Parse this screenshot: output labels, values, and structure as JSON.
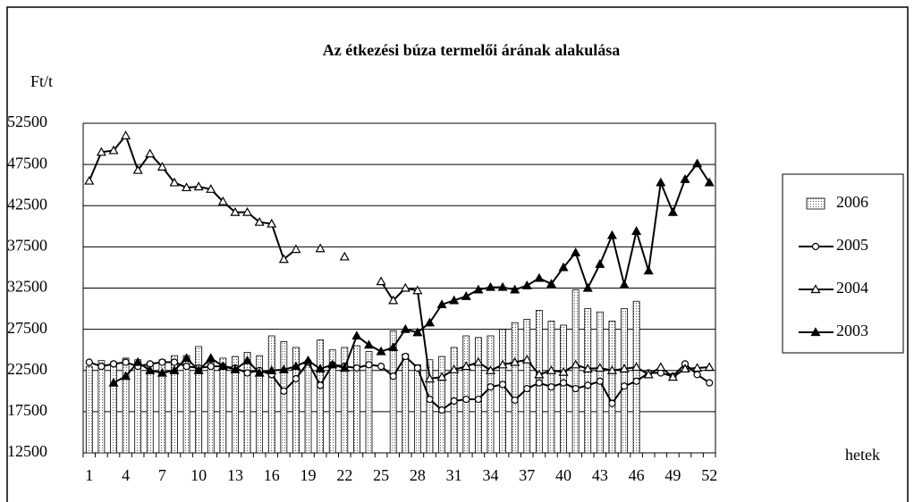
{
  "chart_data": {
    "type": "bar",
    "title": "Az étkezési búza termelői árának alakulása",
    "y_label": "Ft/t",
    "x_label": "hetek",
    "categories": [
      "1",
      null,
      null,
      "4",
      null,
      null,
      "7",
      null,
      null,
      "10",
      null,
      null,
      "13",
      null,
      null,
      "16",
      null,
      null,
      "19",
      null,
      null,
      "22",
      null,
      null,
      "25",
      null,
      null,
      "28",
      null,
      null,
      "31",
      null,
      null,
      "34",
      null,
      null,
      "37",
      null,
      null,
      "40",
      null,
      null,
      "43",
      null,
      null,
      "46",
      null,
      null,
      "49",
      null,
      null,
      "52"
    ],
    "ylim": [
      12500,
      52500
    ],
    "yticks": [
      12500,
      17500,
      22500,
      27500,
      32500,
      37500,
      42500,
      47500,
      52500
    ],
    "grid": true,
    "legend": "right",
    "series": [
      {
        "name": "2006",
        "type": "bar",
        "color": "#000000",
        "values": [
          23000,
          23700,
          23500,
          24000,
          23800,
          23500,
          23800,
          24300,
          24300,
          25400,
          23500,
          24000,
          24200,
          24700,
          24300,
          26700,
          26000,
          25300,
          23500,
          26200,
          25000,
          25300,
          25500,
          24800,
          null,
          27300,
          24500,
          23200,
          23800,
          24200,
          25300,
          26700,
          26500,
          26700,
          27500,
          28300,
          28700,
          29800,
          28500,
          28000,
          32300,
          30000,
          29600,
          28500,
          30000,
          30900,
          null,
          null,
          null,
          null,
          null,
          null
        ]
      },
      {
        "name": "2005",
        "type": "line",
        "marker": "circle",
        "color": "#000000",
        "values": [
          23500,
          23000,
          23300,
          23500,
          23000,
          23300,
          23500,
          23500,
          23000,
          22800,
          23000,
          23000,
          22800,
          22200,
          22500,
          22000,
          20000,
          21500,
          23500,
          20700,
          23200,
          23000,
          22800,
          23200,
          23000,
          21800,
          24200,
          22800,
          19000,
          17700,
          18800,
          19000,
          19000,
          20500,
          20800,
          18900,
          20300,
          21000,
          20500,
          21000,
          20300,
          20700,
          21200,
          18500,
          20600,
          21200,
          22200,
          22200,
          21800,
          23300,
          22000,
          21000
        ]
      },
      {
        "name": "2004",
        "type": "line",
        "marker": "triangle-open",
        "color": "#000000",
        "values": [
          45500,
          49000,
          49200,
          51000,
          46800,
          48800,
          47200,
          45300,
          44700,
          44800,
          44500,
          43000,
          41700,
          41700,
          40500,
          40300,
          36000,
          37200,
          null,
          37300,
          null,
          36300,
          null,
          null,
          33300,
          31000,
          32500,
          32200,
          21500,
          21700,
          22600,
          23000,
          23500,
          22500,
          23200,
          23500,
          23800,
          22000,
          22500,
          22300,
          23200,
          22700,
          22800,
          22500,
          22700,
          22900,
          22000,
          22900,
          21700,
          22700,
          22800,
          22900
        ]
      },
      {
        "name": "2003",
        "type": "line",
        "marker": "triangle",
        "color": "#000000",
        "values": [
          null,
          null,
          21000,
          21800,
          23500,
          22500,
          22200,
          22500,
          24000,
          22500,
          24000,
          23000,
          22600,
          23700,
          22200,
          22500,
          22600,
          23000,
          23700,
          22700,
          23200,
          22800,
          26700,
          25600,
          24800,
          25300,
          27500,
          27100,
          28300,
          30500,
          31000,
          31500,
          32300,
          32600,
          32600,
          32300,
          32800,
          33700,
          33000,
          35000,
          36800,
          32500,
          35400,
          38900,
          32900,
          39400,
          34600,
          45300,
          41700,
          45700,
          47600,
          45300
        ]
      }
    ]
  }
}
